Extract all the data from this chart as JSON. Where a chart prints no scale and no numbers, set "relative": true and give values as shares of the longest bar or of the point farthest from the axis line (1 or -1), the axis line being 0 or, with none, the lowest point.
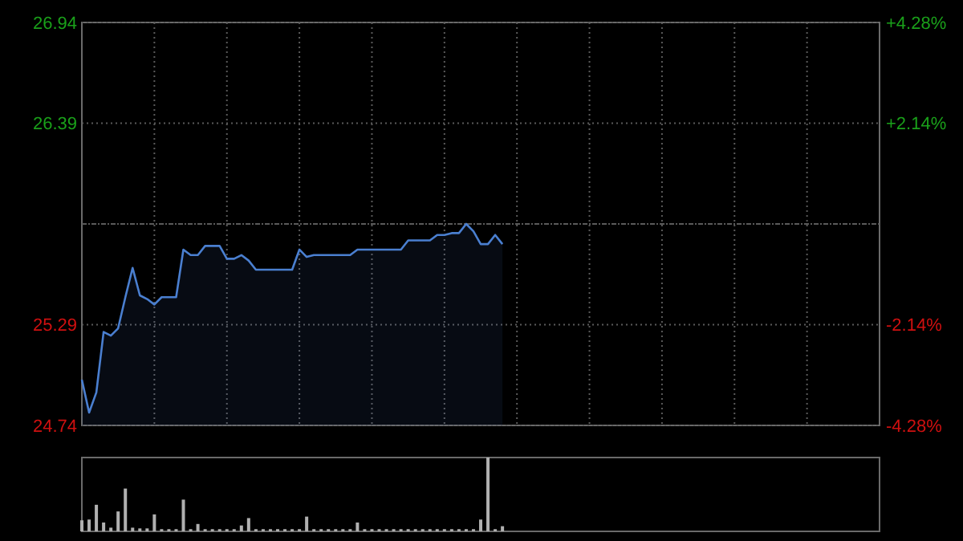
{
  "chart_data": [
    {
      "type": "area",
      "color": "#4a7fd0",
      "categories": [
        null,
        null,
        null,
        null,
        null,
        null,
        null,
        null,
        null,
        null,
        null,
        null,
        null,
        null,
        null,
        null,
        null,
        null,
        null,
        null,
        null,
        null,
        null,
        null,
        null,
        null,
        null,
        null,
        null,
        null,
        null,
        null,
        null,
        null,
        null,
        null,
        null,
        null,
        null,
        null,
        null,
        null,
        null,
        null,
        null,
        null,
        null,
        null,
        null,
        null,
        null,
        null,
        null,
        null,
        null,
        null,
        null,
        null,
        null
      ],
      "values": [
        24.99,
        24.81,
        24.92,
        25.25,
        25.23,
        25.27,
        25.44,
        25.6,
        25.45,
        25.43,
        25.4,
        25.44,
        25.44,
        25.44,
        25.7,
        25.67,
        25.67,
        25.72,
        25.72,
        25.72,
        25.65,
        25.65,
        25.67,
        25.64,
        25.59,
        25.59,
        25.59,
        25.59,
        25.59,
        25.59,
        25.7,
        25.66,
        25.67,
        25.67,
        25.67,
        25.67,
        25.67,
        25.67,
        25.7,
        25.7,
        25.7,
        25.7,
        25.7,
        25.7,
        25.7,
        25.75,
        25.75,
        25.75,
        25.75,
        25.78,
        25.78,
        25.79,
        25.79,
        25.84,
        25.8,
        25.73,
        25.73,
        25.78,
        25.73
      ],
      "ylim": [
        24.74,
        26.94
      ],
      "yticks": [
        24.74,
        25.29,
        {
          "value": 25.84,
          "label": null
        },
        26.39,
        26.94
      ],
      "y2lim": [
        -4.28,
        4.28
      ],
      "y2ticks": [
        {
          "value": -4.28,
          "label": "-4.28%"
        },
        {
          "value": -2.14,
          "label": "-2.14%"
        },
        {
          "value": 2.14,
          "label": "+2.14%"
        },
        {
          "value": 4.28,
          "label": "+4.28%"
        }
      ],
      "grid": true
    },
    {
      "type": "bar",
      "relative": true,
      "color": "#b0b0b0",
      "categories": [
        null,
        null,
        null,
        null,
        null,
        null,
        null,
        null,
        null,
        null,
        null,
        null,
        null,
        null,
        null,
        null,
        null,
        null,
        null,
        null,
        null,
        null,
        null,
        null,
        null,
        null,
        null,
        null,
        null,
        null,
        null,
        null,
        null,
        null,
        null,
        null,
        null,
        null,
        null,
        null,
        null,
        null,
        null,
        null,
        null,
        null,
        null,
        null,
        null,
        null,
        null,
        null,
        null,
        null,
        null,
        null,
        null,
        null,
        null
      ],
      "values": [
        0.15,
        0.16,
        0.36,
        0.12,
        0.05,
        0.27,
        0.58,
        0.05,
        0.04,
        0.04,
        0.23,
        0.03,
        0.03,
        0.03,
        0.43,
        0.03,
        0.1,
        0.03,
        0.03,
        0.03,
        0.03,
        0.03,
        0.08,
        0.18,
        0.03,
        0.03,
        0.03,
        0.03,
        0.03,
        0.03,
        0.03,
        0.2,
        0.03,
        0.03,
        0.03,
        0.03,
        0.03,
        0.03,
        0.12,
        0.03,
        0.03,
        0.03,
        0.03,
        0.03,
        0.03,
        0.03,
        0.03,
        0.03,
        0.03,
        0.03,
        0.03,
        0.03,
        0.03,
        0.03,
        0.03,
        0.16,
        1,
        0.03,
        0.07
      ]
    }
  ]
}
